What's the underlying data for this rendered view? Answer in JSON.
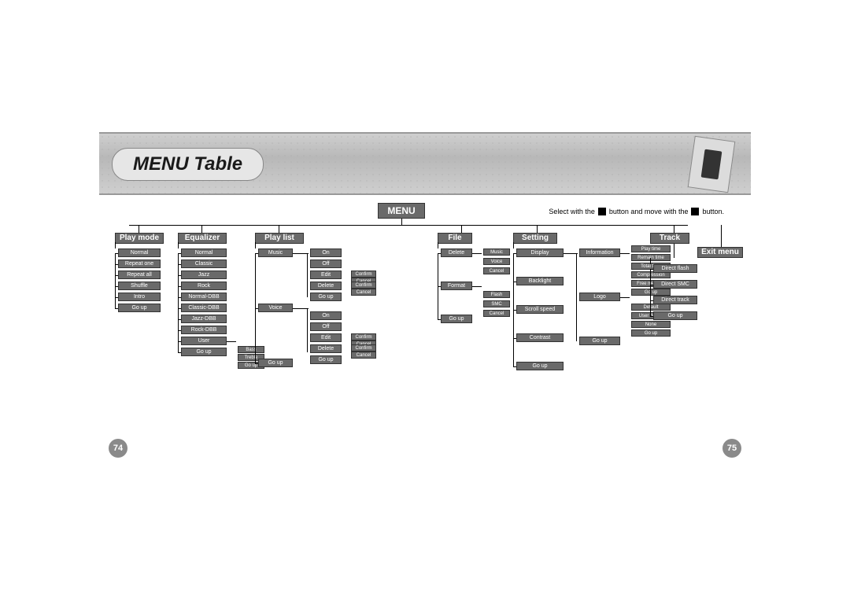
{
  "title": "MENU Table",
  "instruction_pre": "Select with the",
  "instruction_mid": "button and move with the",
  "instruction_post": "button.",
  "page_left": "74",
  "page_right": "75",
  "root": "MENU",
  "exit": "Exit menu",
  "cols": {
    "playmode": {
      "label": "Play mode",
      "items": [
        "Normal",
        "Repeat one",
        "Repeat all",
        "Shuffle",
        "Intro",
        "Go up"
      ]
    },
    "equalizer": {
      "label": "Equalizer",
      "items": [
        "Normal",
        "Classic",
        "Jazz",
        "Rock",
        "Normal-DBB",
        "Classic-DBB",
        "Jazz-DBB",
        "Rock-DBB",
        "User",
        "Go up"
      ],
      "user_sub": [
        "Bass",
        "Treble",
        "Go up"
      ]
    },
    "playlist": {
      "label": "Play list",
      "items": [
        "Music",
        "Voice",
        "Go up"
      ],
      "music_sub": [
        "On",
        "Off",
        "Edit",
        "Delete",
        "Go up"
      ],
      "voice_sub": [
        "On",
        "Off",
        "Edit",
        "Delete",
        "Go up"
      ],
      "edit_sub": [
        "Confirm",
        "Cancel"
      ],
      "delete_sub": [
        "Confirm",
        "Cancel"
      ]
    },
    "file": {
      "label": "File",
      "items": [
        "Delete",
        "Format",
        "Go up"
      ],
      "delete_sub": [
        "Music",
        "Voice",
        "Cancel"
      ],
      "format_sub": [
        "Flash",
        "SMC",
        "Cancel"
      ]
    },
    "setting": {
      "label": "Setting",
      "items": [
        "Display",
        "Backlight",
        "Scroll speed",
        "Contrast",
        "Go up"
      ],
      "display_sub": [
        "Information",
        "Logo",
        "Go up"
      ],
      "info_sub": [
        "Play time",
        "Remain time",
        "Total time",
        "Compression",
        "Free memory",
        "Go up"
      ],
      "logo_sub": [
        "Default",
        "User define",
        "None",
        "Go up"
      ]
    },
    "track": {
      "label": "Track",
      "items": [
        "Direct flash",
        "Direct SMC",
        "Direct track",
        "Go up"
      ]
    }
  },
  "colors": {
    "node_bg": "#6a6a6a",
    "node_fg": "#ffffff",
    "line": "#000000",
    "band_bg": "#c4c4c4"
  }
}
